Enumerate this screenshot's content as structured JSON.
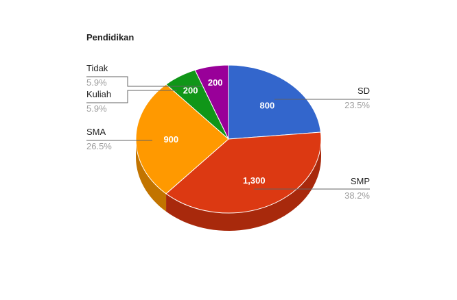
{
  "chart_data": {
    "type": "pie",
    "title": "Pendidikan",
    "three_d": true,
    "slices": [
      {
        "name": "SD",
        "value": 800,
        "value_label": "800",
        "percent": "23.5%",
        "color": "#3366cc",
        "side_color": "#2a52a3"
      },
      {
        "name": "SMP",
        "value": 1300,
        "value_label": "1,300",
        "percent": "38.2%",
        "color": "#dc3912",
        "side_color": "#a8290c"
      },
      {
        "name": "SMA",
        "value": 900,
        "value_label": "900",
        "percent": "26.5%",
        "color": "#ff9900",
        "side_color": "#c27400"
      },
      {
        "name": "Kuliah",
        "value": 200,
        "value_label": "200",
        "percent": "5.9%",
        "color": "#109618",
        "side_color": "#0b6e11"
      },
      {
        "name": "Tidak",
        "value": 200,
        "value_label": "200",
        "percent": "5.9%",
        "color": "#990099",
        "side_color": "#700070"
      }
    ],
    "legend_placement": "labeled"
  }
}
